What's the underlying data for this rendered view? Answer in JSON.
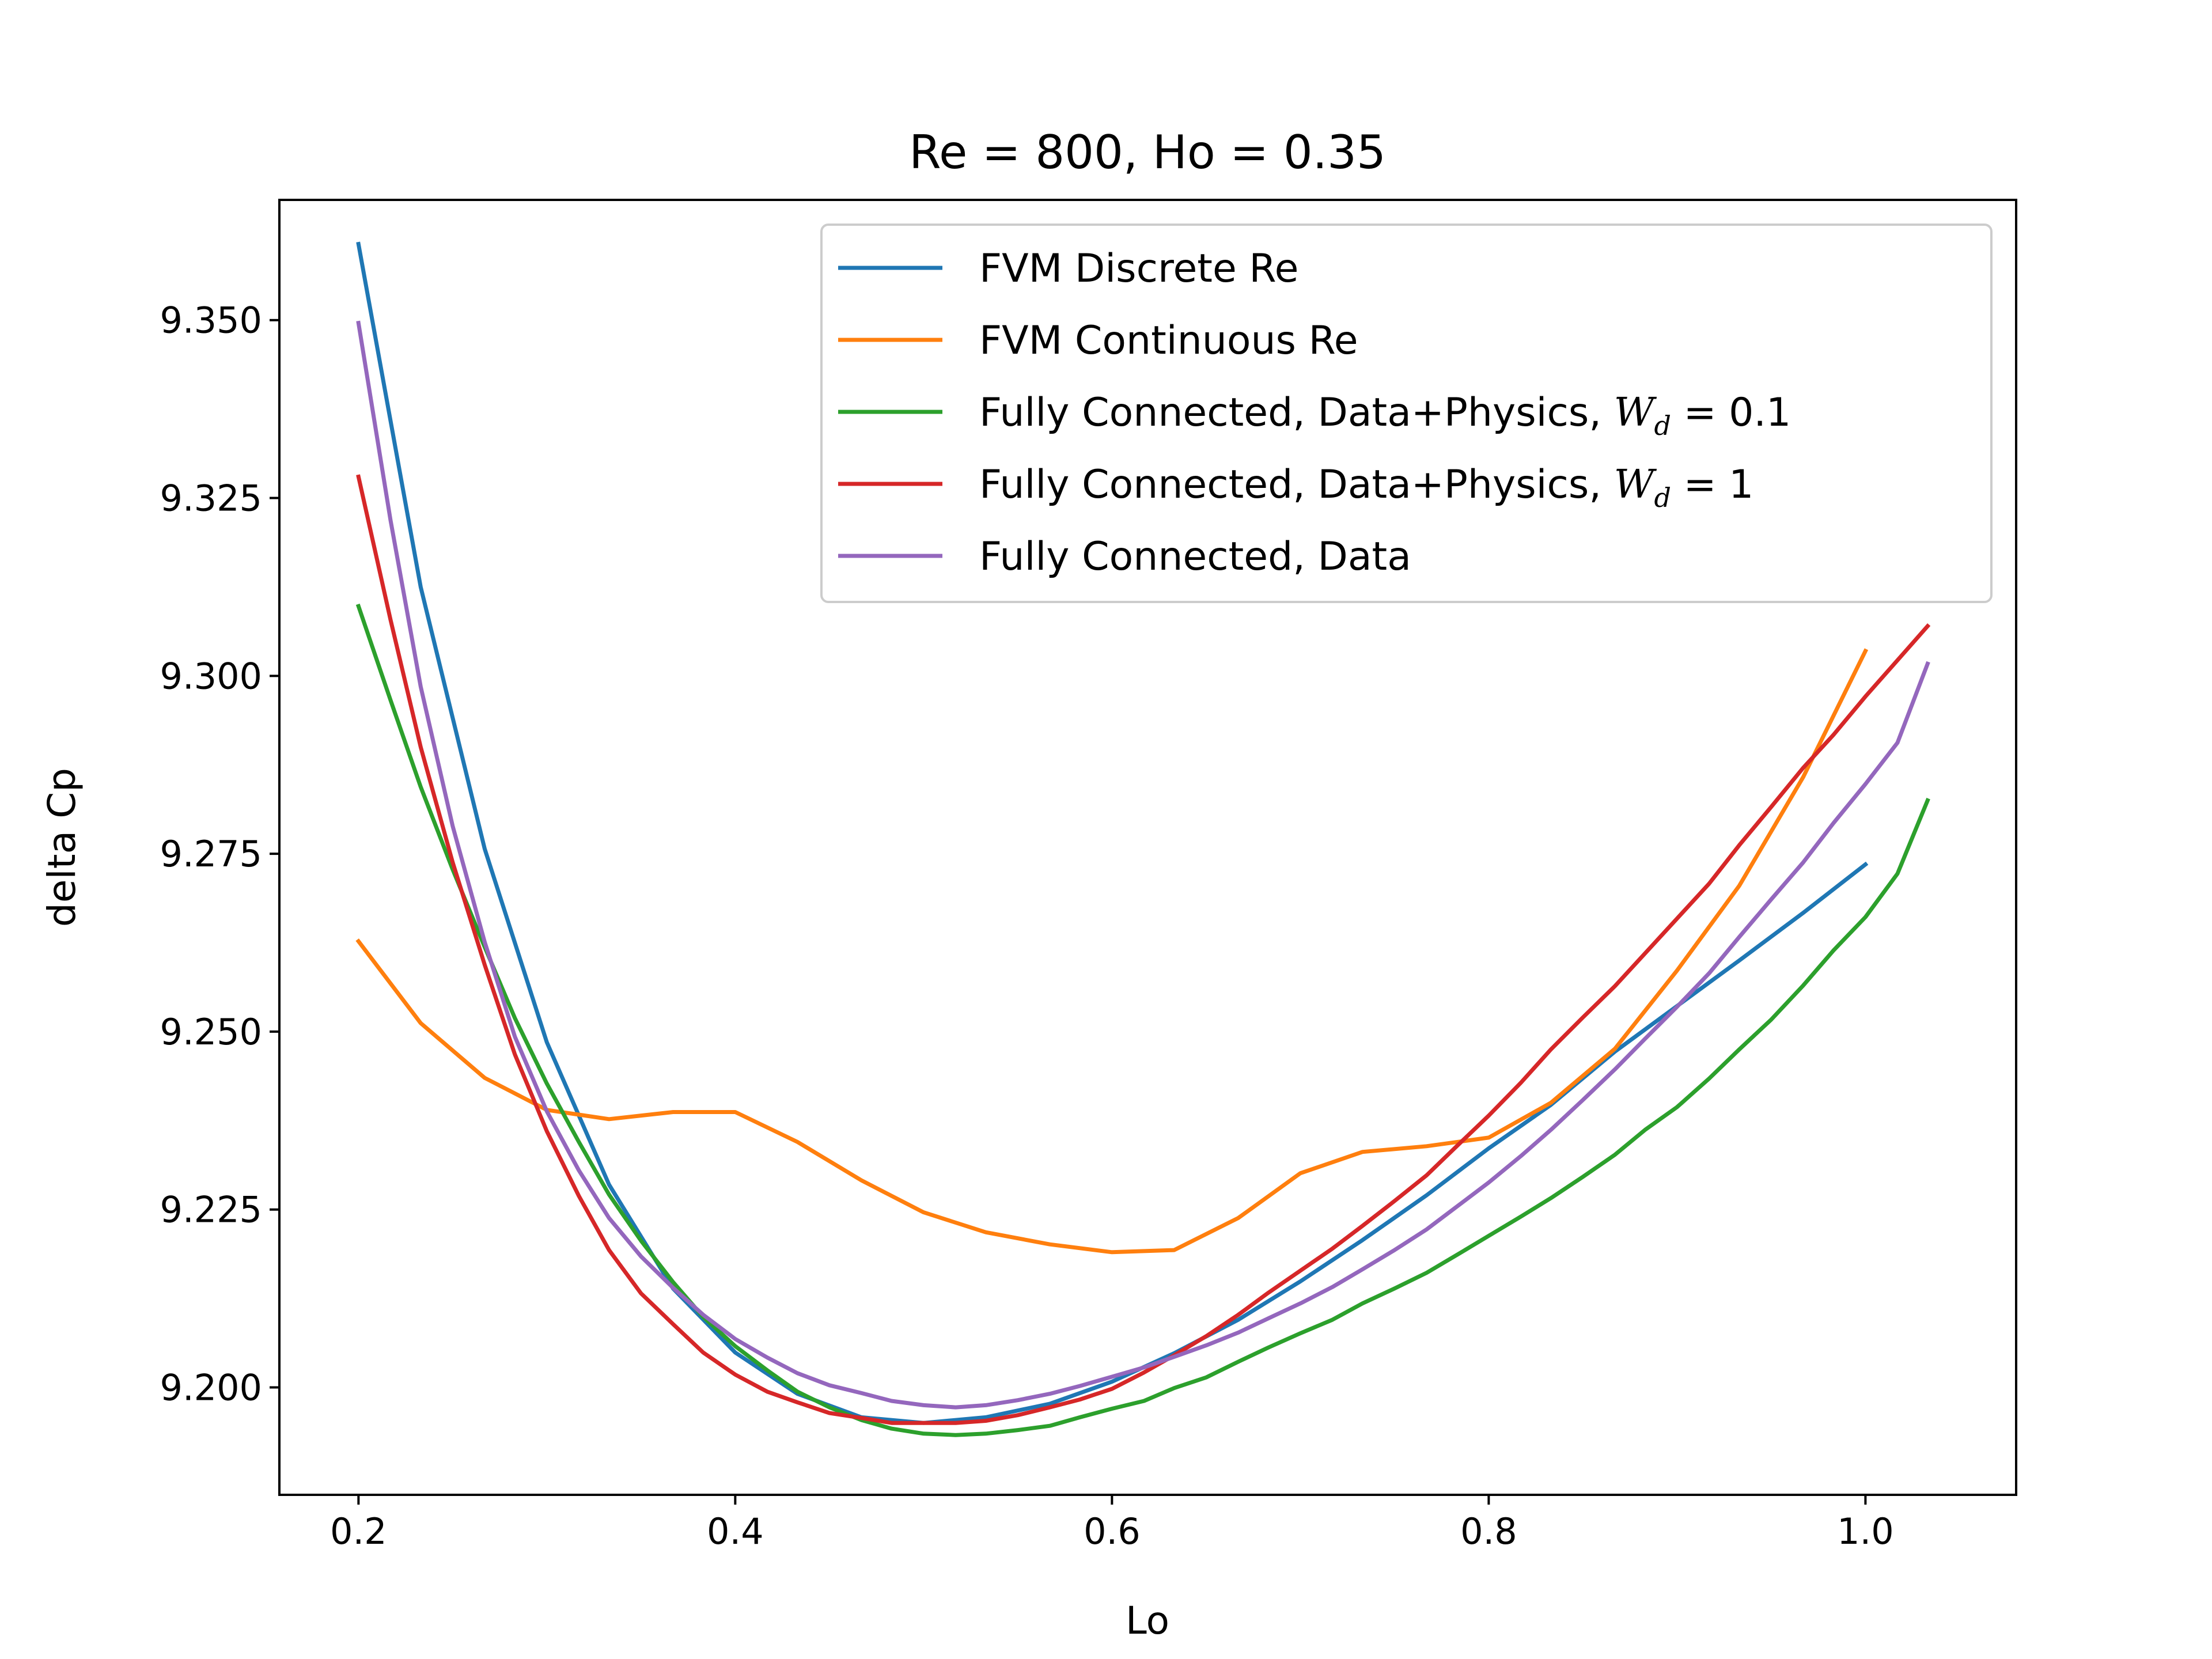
{
  "chart_data": {
    "type": "line",
    "title": "Re = 800, Ho = 0.35",
    "xlabel": "Lo",
    "ylabel": "delta Cp",
    "xlim": [
      0.158,
      1.08
    ],
    "ylim": [
      9.1849,
      9.3669
    ],
    "xticks": [
      "0.2",
      "0.4",
      "0.6",
      "0.8",
      "1.0"
    ],
    "xtick_values": [
      0.2,
      0.4,
      0.6,
      0.8,
      1.0
    ],
    "yticks": [
      "9.200",
      "9.225",
      "9.250",
      "9.275",
      "9.300",
      "9.325",
      "9.350"
    ],
    "ytick_values": [
      9.2,
      9.225,
      9.25,
      9.275,
      9.3,
      9.325,
      9.35
    ],
    "grid": false,
    "legend_position": "upper-right",
    "series": [
      {
        "name": "FVM Discrete Re",
        "color": "#1f77b4",
        "x": [
          0.2,
          0.233,
          0.267,
          0.3,
          0.333,
          0.367,
          0.4,
          0.433,
          0.467,
          0.5,
          0.533,
          0.567,
          0.6,
          0.633,
          0.667,
          0.7,
          0.733,
          0.767,
          0.8,
          0.833,
          0.867,
          0.9,
          0.933,
          0.967,
          1.0
        ],
        "y": [
          9.3607,
          9.3125,
          9.2757,
          9.2485,
          9.2285,
          9.2139,
          9.2049,
          9.1991,
          9.1958,
          9.195,
          9.1958,
          9.1977,
          9.2008,
          9.2048,
          9.2095,
          9.2149,
          9.2207,
          9.227,
          9.2336,
          9.2397,
          9.2472,
          9.2536,
          9.26,
          9.2667,
          9.2735
        ]
      },
      {
        "name": "FVM Continuous Re",
        "color": "#ff7f0e",
        "x": [
          0.2,
          0.233,
          0.267,
          0.3,
          0.333,
          0.367,
          0.4,
          0.433,
          0.467,
          0.5,
          0.533,
          0.567,
          0.6,
          0.633,
          0.667,
          0.7,
          0.733,
          0.767,
          0.8,
          0.833,
          0.867,
          0.9,
          0.933,
          0.967,
          1.0
        ],
        "y": [
          9.2627,
          9.2512,
          9.2435,
          9.239,
          9.2377,
          9.2387,
          9.2387,
          9.2345,
          9.2291,
          9.2246,
          9.2218,
          9.2201,
          9.219,
          9.2193,
          9.2238,
          9.2301,
          9.2331,
          9.2339,
          9.2351,
          9.24,
          9.2476,
          9.2586,
          9.2705,
          9.2858,
          9.3035
        ]
      },
      {
        "name": "Fully Connected, Data+Physics, W_d = 0.1",
        "color": "#2ca02c",
        "x": [
          0.2,
          0.217,
          0.233,
          0.25,
          0.267,
          0.283,
          0.3,
          0.317,
          0.333,
          0.35,
          0.367,
          0.383,
          0.4,
          0.417,
          0.433,
          0.45,
          0.467,
          0.483,
          0.5,
          0.517,
          0.533,
          0.55,
          0.567,
          0.583,
          0.6,
          0.617,
          0.633,
          0.65,
          0.667,
          0.683,
          0.7,
          0.717,
          0.733,
          0.75,
          0.767,
          0.783,
          0.8,
          0.817,
          0.833,
          0.85,
          0.867,
          0.883,
          0.9,
          0.917,
          0.933,
          0.95,
          0.967,
          0.983,
          1.0,
          1.017,
          1.033
        ],
        "y": [
          9.3098,
          9.2966,
          9.2844,
          9.2728,
          9.2619,
          9.2519,
          9.2427,
          9.2345,
          9.2271,
          9.2206,
          9.2148,
          9.2099,
          9.2058,
          9.2024,
          9.1994,
          9.1972,
          9.1954,
          9.1942,
          9.1935,
          9.1933,
          9.1935,
          9.194,
          9.1946,
          9.1958,
          9.197,
          9.1981,
          9.1999,
          9.2014,
          9.2036,
          9.2056,
          9.2076,
          9.2095,
          9.2118,
          9.2139,
          9.2161,
          9.2186,
          9.2213,
          9.224,
          9.2266,
          9.2296,
          9.2327,
          9.2362,
          9.2394,
          9.2434,
          9.2475,
          9.2517,
          9.2565,
          9.2614,
          9.2661,
          9.2722,
          9.2825
        ]
      },
      {
        "name": "Fully Connected, Data+Physics, W_d = 1",
        "color": "#d62728",
        "x": [
          0.2,
          0.217,
          0.233,
          0.25,
          0.267,
          0.283,
          0.3,
          0.317,
          0.333,
          0.35,
          0.367,
          0.383,
          0.4,
          0.417,
          0.433,
          0.45,
          0.467,
          0.483,
          0.5,
          0.517,
          0.533,
          0.55,
          0.567,
          0.583,
          0.6,
          0.617,
          0.633,
          0.65,
          0.667,
          0.683,
          0.7,
          0.717,
          0.733,
          0.75,
          0.767,
          0.783,
          0.8,
          0.817,
          0.833,
          0.85,
          0.867,
          0.883,
          0.9,
          0.917,
          0.933,
          0.95,
          0.967,
          0.983,
          1.0,
          1.017,
          1.033
        ],
        "y": [
          9.328,
          9.3079,
          9.29,
          9.2738,
          9.2594,
          9.2468,
          9.236,
          9.2269,
          9.2193,
          9.2132,
          9.2089,
          9.2049,
          9.2018,
          9.1994,
          9.1979,
          9.1964,
          9.1957,
          9.195,
          9.195,
          9.195,
          9.1953,
          9.1961,
          9.1972,
          9.1983,
          9.1998,
          9.2021,
          9.2045,
          9.2072,
          9.2102,
          9.2133,
          9.2164,
          9.2195,
          9.2227,
          9.2262,
          9.2298,
          9.2339,
          9.2382,
          9.2428,
          9.2475,
          9.252,
          9.2564,
          9.261,
          9.2659,
          9.2708,
          9.2762,
          9.2816,
          9.2871,
          9.2917,
          9.2971,
          9.3022,
          9.307
        ]
      },
      {
        "name": "Fully Connected, Data",
        "color": "#9467bd",
        "x": [
          0.2,
          0.217,
          0.233,
          0.25,
          0.267,
          0.283,
          0.3,
          0.317,
          0.333,
          0.35,
          0.367,
          0.383,
          0.4,
          0.417,
          0.433,
          0.45,
          0.467,
          0.483,
          0.5,
          0.517,
          0.533,
          0.55,
          0.567,
          0.583,
          0.6,
          0.617,
          0.633,
          0.65,
          0.667,
          0.683,
          0.7,
          0.717,
          0.733,
          0.75,
          0.767,
          0.783,
          0.8,
          0.817,
          0.833,
          0.85,
          0.867,
          0.883,
          0.9,
          0.917,
          0.933,
          0.95,
          0.967,
          0.983,
          1.0,
          1.017,
          1.033
        ],
        "y": [
          9.3496,
          9.3219,
          9.2985,
          9.2789,
          9.2626,
          9.2493,
          9.2388,
          9.2305,
          9.2238,
          9.2184,
          9.214,
          9.2102,
          9.2068,
          9.2042,
          9.202,
          9.2003,
          9.1992,
          9.1981,
          9.1975,
          9.1972,
          9.1975,
          9.1982,
          9.1991,
          9.2002,
          9.2015,
          9.2028,
          9.2043,
          9.2059,
          9.2077,
          9.2097,
          9.2118,
          9.2141,
          9.2166,
          9.2193,
          9.2222,
          9.2254,
          9.2288,
          9.2325,
          9.2362,
          9.2404,
          9.2447,
          9.249,
          9.2535,
          9.2582,
          9.2633,
          9.2686,
          9.2738,
          9.2793,
          9.2848,
          9.2906,
          9.3017
        ]
      }
    ]
  },
  "legend": {
    "entries": [
      {
        "label": "FVM Discrete Re",
        "color": "#1f77b4"
      },
      {
        "label": "FVM Continuous Re",
        "color": "#ff7f0e"
      },
      {
        "label": "Fully Connected, Data+Physics, ",
        "math": "W",
        "sub": "d",
        "eq": " = 0.1",
        "color": "#2ca02c"
      },
      {
        "label": "Fully Connected, Data+Physics, ",
        "math": "W",
        "sub": "d",
        "eq": " = 1",
        "color": "#d62728"
      },
      {
        "label": "Fully Connected, Data",
        "color": "#9467bd"
      }
    ]
  }
}
